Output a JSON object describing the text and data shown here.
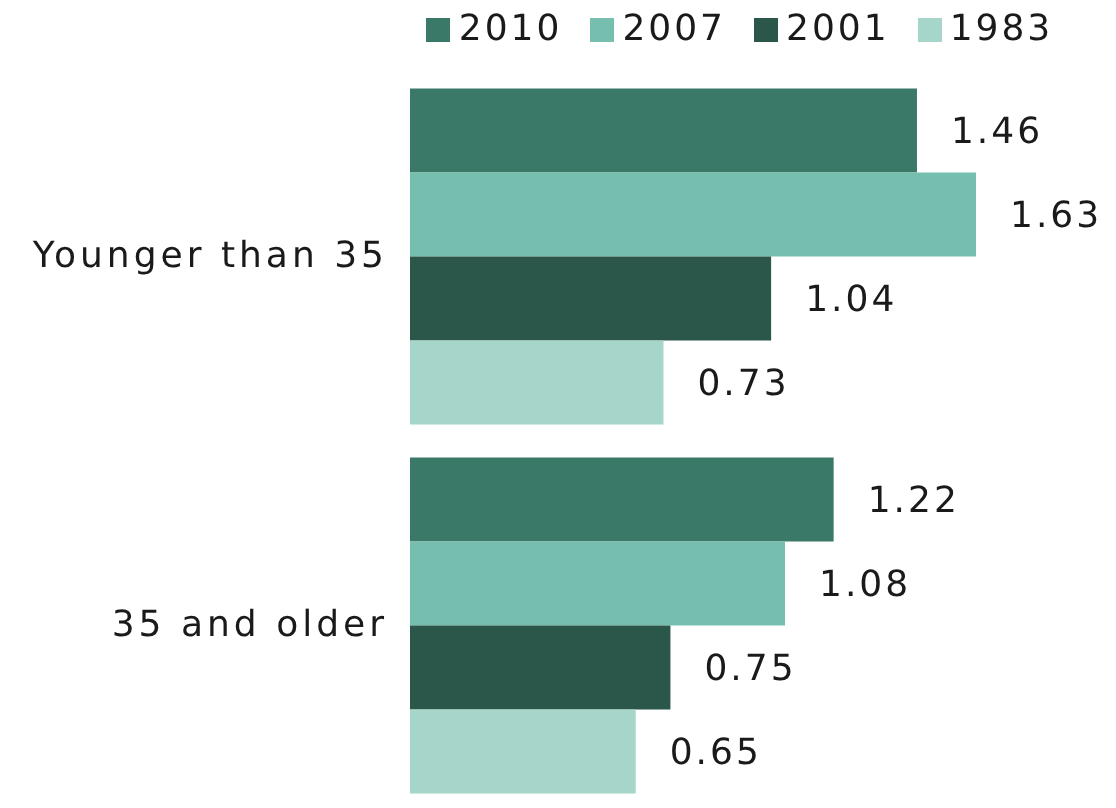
{
  "chart_data": {
    "type": "bar",
    "orientation": "horizontal",
    "categories": [
      "Younger than 35",
      "35 and older"
    ],
    "series": [
      {
        "name": "2010",
        "color": "#3a7868",
        "values": [
          1.46,
          1.22
        ]
      },
      {
        "name": "2007",
        "color": "#76bfae",
        "values": [
          1.63,
          1.08
        ]
      },
      {
        "name": "2001",
        "color": "#2b574b",
        "values": [
          1.04,
          0.75
        ]
      },
      {
        "name": "1983",
        "color": "#a6d5ca",
        "values": [
          0.73,
          0.65
        ]
      }
    ],
    "data_labels": true,
    "legend": "top"
  }
}
